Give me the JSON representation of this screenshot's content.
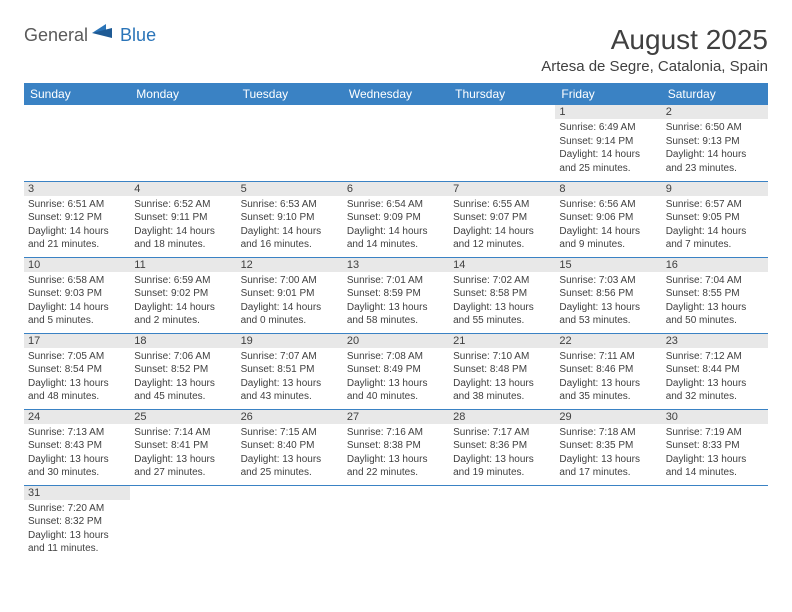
{
  "logo": {
    "general": "General",
    "blue": "Blue"
  },
  "title": "August 2025",
  "location": "Artesa de Segre, Catalonia, Spain",
  "colors": {
    "header_bg": "#3a82c4",
    "header_text": "#ffffff",
    "daynum_bg": "#e8e8e8",
    "border": "#3a82c4",
    "text": "#404040"
  },
  "weekdays": [
    "Sunday",
    "Monday",
    "Tuesday",
    "Wednesday",
    "Thursday",
    "Friday",
    "Saturday"
  ],
  "weeks": [
    [
      null,
      null,
      null,
      null,
      null,
      {
        "n": "1",
        "sr": "6:49 AM",
        "ss": "9:14 PM",
        "dl": "14 hours and 25 minutes."
      },
      {
        "n": "2",
        "sr": "6:50 AM",
        "ss": "9:13 PM",
        "dl": "14 hours and 23 minutes."
      }
    ],
    [
      {
        "n": "3",
        "sr": "6:51 AM",
        "ss": "9:12 PM",
        "dl": "14 hours and 21 minutes."
      },
      {
        "n": "4",
        "sr": "6:52 AM",
        "ss": "9:11 PM",
        "dl": "14 hours and 18 minutes."
      },
      {
        "n": "5",
        "sr": "6:53 AM",
        "ss": "9:10 PM",
        "dl": "14 hours and 16 minutes."
      },
      {
        "n": "6",
        "sr": "6:54 AM",
        "ss": "9:09 PM",
        "dl": "14 hours and 14 minutes."
      },
      {
        "n": "7",
        "sr": "6:55 AM",
        "ss": "9:07 PM",
        "dl": "14 hours and 12 minutes."
      },
      {
        "n": "8",
        "sr": "6:56 AM",
        "ss": "9:06 PM",
        "dl": "14 hours and 9 minutes."
      },
      {
        "n": "9",
        "sr": "6:57 AM",
        "ss": "9:05 PM",
        "dl": "14 hours and 7 minutes."
      }
    ],
    [
      {
        "n": "10",
        "sr": "6:58 AM",
        "ss": "9:03 PM",
        "dl": "14 hours and 5 minutes."
      },
      {
        "n": "11",
        "sr": "6:59 AM",
        "ss": "9:02 PM",
        "dl": "14 hours and 2 minutes."
      },
      {
        "n": "12",
        "sr": "7:00 AM",
        "ss": "9:01 PM",
        "dl": "14 hours and 0 minutes."
      },
      {
        "n": "13",
        "sr": "7:01 AM",
        "ss": "8:59 PM",
        "dl": "13 hours and 58 minutes."
      },
      {
        "n": "14",
        "sr": "7:02 AM",
        "ss": "8:58 PM",
        "dl": "13 hours and 55 minutes."
      },
      {
        "n": "15",
        "sr": "7:03 AM",
        "ss": "8:56 PM",
        "dl": "13 hours and 53 minutes."
      },
      {
        "n": "16",
        "sr": "7:04 AM",
        "ss": "8:55 PM",
        "dl": "13 hours and 50 minutes."
      }
    ],
    [
      {
        "n": "17",
        "sr": "7:05 AM",
        "ss": "8:54 PM",
        "dl": "13 hours and 48 minutes."
      },
      {
        "n": "18",
        "sr": "7:06 AM",
        "ss": "8:52 PM",
        "dl": "13 hours and 45 minutes."
      },
      {
        "n": "19",
        "sr": "7:07 AM",
        "ss": "8:51 PM",
        "dl": "13 hours and 43 minutes."
      },
      {
        "n": "20",
        "sr": "7:08 AM",
        "ss": "8:49 PM",
        "dl": "13 hours and 40 minutes."
      },
      {
        "n": "21",
        "sr": "7:10 AM",
        "ss": "8:48 PM",
        "dl": "13 hours and 38 minutes."
      },
      {
        "n": "22",
        "sr": "7:11 AM",
        "ss": "8:46 PM",
        "dl": "13 hours and 35 minutes."
      },
      {
        "n": "23",
        "sr": "7:12 AM",
        "ss": "8:44 PM",
        "dl": "13 hours and 32 minutes."
      }
    ],
    [
      {
        "n": "24",
        "sr": "7:13 AM",
        "ss": "8:43 PM",
        "dl": "13 hours and 30 minutes."
      },
      {
        "n": "25",
        "sr": "7:14 AM",
        "ss": "8:41 PM",
        "dl": "13 hours and 27 minutes."
      },
      {
        "n": "26",
        "sr": "7:15 AM",
        "ss": "8:40 PM",
        "dl": "13 hours and 25 minutes."
      },
      {
        "n": "27",
        "sr": "7:16 AM",
        "ss": "8:38 PM",
        "dl": "13 hours and 22 minutes."
      },
      {
        "n": "28",
        "sr": "7:17 AM",
        "ss": "8:36 PM",
        "dl": "13 hours and 19 minutes."
      },
      {
        "n": "29",
        "sr": "7:18 AM",
        "ss": "8:35 PM",
        "dl": "13 hours and 17 minutes."
      },
      {
        "n": "30",
        "sr": "7:19 AM",
        "ss": "8:33 PM",
        "dl": "13 hours and 14 minutes."
      }
    ],
    [
      {
        "n": "31",
        "sr": "7:20 AM",
        "ss": "8:32 PM",
        "dl": "13 hours and 11 minutes."
      },
      null,
      null,
      null,
      null,
      null,
      null
    ]
  ],
  "labels": {
    "sunrise": "Sunrise:",
    "sunset": "Sunset:",
    "daylight": "Daylight:"
  }
}
